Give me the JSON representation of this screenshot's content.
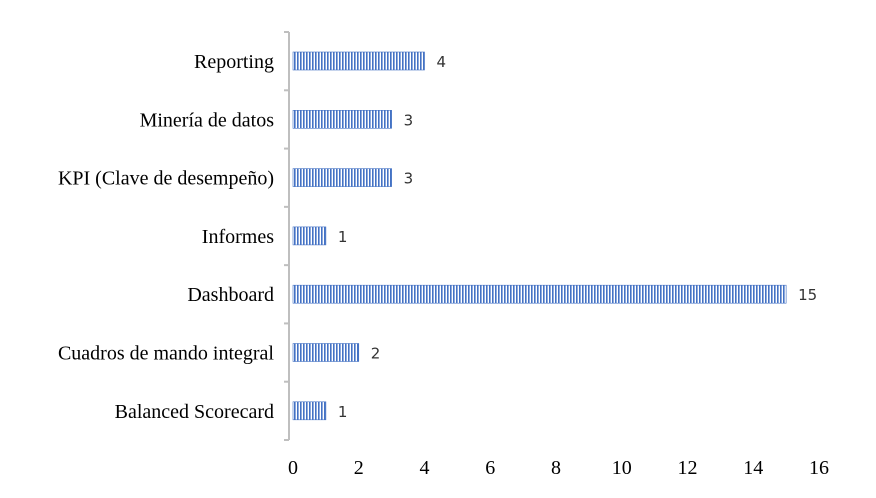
{
  "chart_data": {
    "type": "bar",
    "orientation": "horizontal",
    "categories": [
      "Reporting",
      "Minería de datos",
      "KPI (Clave de desempeño)",
      "Informes",
      "Dashboard",
      "Cuadros de mando integral",
      "Balanced Scorecard"
    ],
    "values": [
      4,
      3,
      3,
      1,
      15,
      2,
      1
    ],
    "data_labels": [
      "4",
      "3",
      "3",
      "1",
      "15",
      "2",
      "1"
    ],
    "x_ticks": [
      "0",
      "2",
      "4",
      "6",
      "8",
      "10",
      "12",
      "14",
      "16"
    ],
    "xlim": [
      0,
      16
    ],
    "title": "",
    "xlabel": "",
    "ylabel": "",
    "grid": false,
    "legend": "none",
    "bar_color": "#4472c4",
    "bar_pattern": "vertical-stripes"
  }
}
